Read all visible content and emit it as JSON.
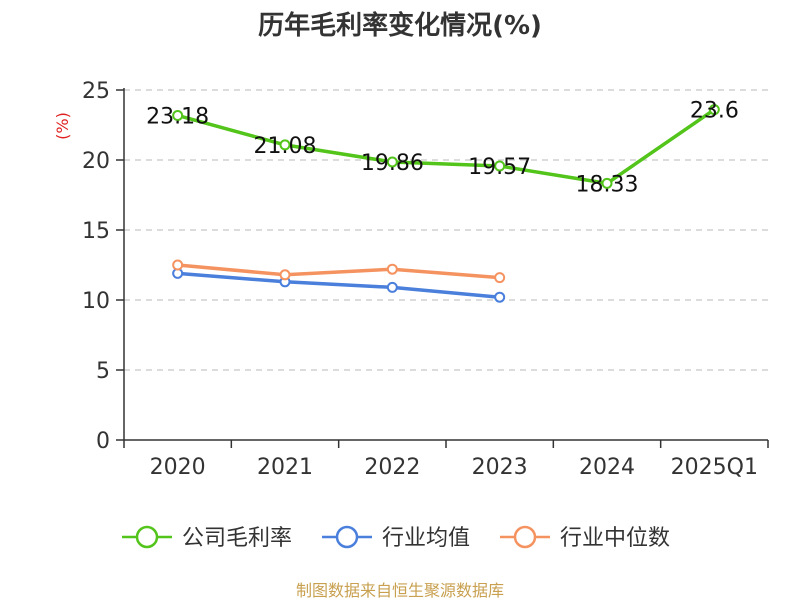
{
  "chart_data": {
    "type": "line",
    "title": "历年毛利率变化情况(%)",
    "ylabel": "(%)",
    "xlabel": "",
    "ylim": [
      0,
      25
    ],
    "yticks": [
      0,
      5,
      10,
      15,
      20,
      25
    ],
    "grid": true,
    "legend_position": "bottom",
    "categories": [
      "2020",
      "2021",
      "2022",
      "2023",
      "2024",
      "2025Q1"
    ],
    "series": [
      {
        "name": "公司毛利率",
        "color": "#52c41a",
        "values": [
          23.18,
          21.08,
          19.86,
          19.57,
          18.33,
          23.6
        ],
        "labels": [
          "23.18",
          "21.08",
          "19.86",
          "19.57",
          "18.33",
          "23.6"
        ]
      },
      {
        "name": "行业均值",
        "color": "#4a7fdc",
        "values": [
          11.9,
          11.3,
          10.9,
          10.2,
          null,
          null
        ]
      },
      {
        "name": "行业中位数",
        "color": "#f59360",
        "values": [
          12.5,
          11.8,
          12.2,
          11.6,
          null,
          null
        ]
      }
    ]
  },
  "ylabel_color": "#e02020",
  "source": {
    "text": "制图数据来自恒生聚源数据库",
    "color": "#c8a050"
  }
}
